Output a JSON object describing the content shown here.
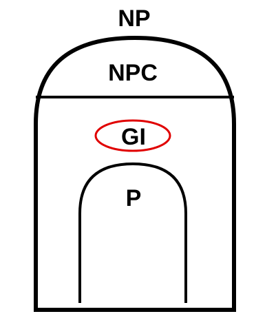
{
  "diagram": {
    "labels": {
      "top": "NP",
      "cap": "NPC",
      "highlighted": "GI",
      "inner": "P"
    },
    "colors": {
      "stroke": "#000000",
      "highlight": "#e00000",
      "background": "#ffffff"
    }
  }
}
